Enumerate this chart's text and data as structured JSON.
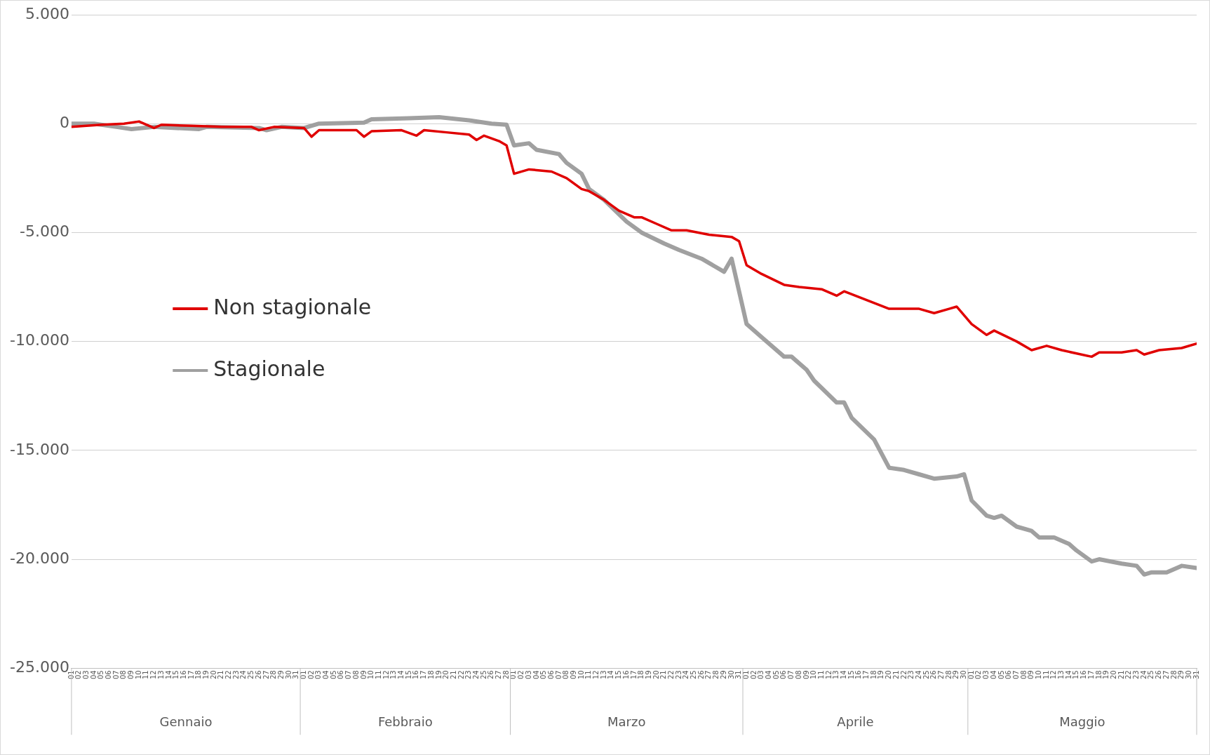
{
  "chart_data": {
    "type": "line",
    "xlim": [
      "--01-01",
      "--05-31"
    ],
    "annotations": [
      "Gennaio",
      "Febbraio",
      "Marzo",
      "Aprile",
      "Maggio"
    ],
    "xticks": [
      {
        "value": "--01-01",
        "label": "01"
      },
      {
        "value": "--01-02",
        "label": "02"
      },
      {
        "value": "--01-03",
        "label": "03"
      },
      {
        "value": "--01-04",
        "label": "04"
      },
      {
        "value": "--01-05",
        "label": "05"
      },
      {
        "value": "--01-06",
        "label": "06"
      },
      {
        "value": "--01-07",
        "label": "07"
      },
      {
        "value": "--01-08",
        "label": "08"
      },
      {
        "value": "--01-09",
        "label": "09"
      },
      {
        "value": "--01-10",
        "label": "10"
      },
      {
        "value": "--01-11",
        "label": "11"
      },
      {
        "value": "--01-12",
        "label": "12"
      },
      {
        "value": "--01-13",
        "label": "13"
      },
      {
        "value": "--01-14",
        "label": "14"
      },
      {
        "value": "--01-15",
        "label": "15"
      },
      {
        "value": "--01-16",
        "label": "16"
      },
      {
        "value": "--01-17",
        "label": "17"
      },
      {
        "value": "--01-18",
        "label": "18"
      },
      {
        "value": "--01-19",
        "label": "19"
      },
      {
        "value": "--01-20",
        "label": "20"
      },
      {
        "value": "--01-21",
        "label": "21"
      },
      {
        "value": "--01-22",
        "label": "22"
      },
      {
        "value": "--01-23",
        "label": "23"
      },
      {
        "value": "--01-24",
        "label": "24"
      },
      {
        "value": "--01-25",
        "label": "25"
      },
      {
        "value": "--01-26",
        "label": "26"
      },
      {
        "value": "--01-27",
        "label": "27"
      },
      {
        "value": "--01-28",
        "label": "28"
      },
      {
        "value": "--01-29",
        "label": "29"
      },
      {
        "value": "--01-30",
        "label": "30"
      },
      {
        "value": "--01-31",
        "label": "31"
      },
      {
        "value": "--02-01",
        "label": "01"
      },
      {
        "value": "--02-02",
        "label": "02"
      },
      {
        "value": "--02-03",
        "label": "03"
      },
      {
        "value": "--02-04",
        "label": "04"
      },
      {
        "value": "--02-05",
        "label": "05"
      },
      {
        "value": "--02-06",
        "label": "06"
      },
      {
        "value": "--02-07",
        "label": "07"
      },
      {
        "value": "--02-08",
        "label": "08"
      },
      {
        "value": "--02-09",
        "label": "09"
      },
      {
        "value": "--02-10",
        "label": "10"
      },
      {
        "value": "--02-11",
        "label": "11"
      },
      {
        "value": "--02-12",
        "label": "12"
      },
      {
        "value": "--02-13",
        "label": "13"
      },
      {
        "value": "--02-14",
        "label": "14"
      },
      {
        "value": "--02-15",
        "label": "15"
      },
      {
        "value": "--02-16",
        "label": "16"
      },
      {
        "value": "--02-17",
        "label": "17"
      },
      {
        "value": "--02-18",
        "label": "18"
      },
      {
        "value": "--02-19",
        "label": "19"
      },
      {
        "value": "--02-20",
        "label": "20"
      },
      {
        "value": "--02-21",
        "label": "21"
      },
      {
        "value": "--02-22",
        "label": "22"
      },
      {
        "value": "--02-23",
        "label": "23"
      },
      {
        "value": "--02-24",
        "label": "24"
      },
      {
        "value": "--02-25",
        "label": "25"
      },
      {
        "value": "--02-26",
        "label": "26"
      },
      {
        "value": "--02-27",
        "label": "27"
      },
      {
        "value": "--02-28",
        "label": "28"
      },
      {
        "value": "--03-01",
        "label": "01"
      },
      {
        "value": "--03-02",
        "label": "02"
      },
      {
        "value": "--03-03",
        "label": "03"
      },
      {
        "value": "--03-04",
        "label": "04"
      },
      {
        "value": "--03-05",
        "label": "05"
      },
      {
        "value": "--03-06",
        "label": "06"
      },
      {
        "value": "--03-07",
        "label": "07"
      },
      {
        "value": "--03-08",
        "label": "08"
      },
      {
        "value": "--03-09",
        "label": "09"
      },
      {
        "value": "--03-10",
        "label": "10"
      },
      {
        "value": "--03-11",
        "label": "11"
      },
      {
        "value": "--03-12",
        "label": "12"
      },
      {
        "value": "--03-13",
        "label": "13"
      },
      {
        "value": "--03-14",
        "label": "14"
      },
      {
        "value": "--03-15",
        "label": "15"
      },
      {
        "value": "--03-16",
        "label": "16"
      },
      {
        "value": "--03-17",
        "label": "17"
      },
      {
        "value": "--03-18",
        "label": "18"
      },
      {
        "value": "--03-19",
        "label": "19"
      },
      {
        "value": "--03-20",
        "label": "20"
      },
      {
        "value": "--03-21",
        "label": "21"
      },
      {
        "value": "--03-22",
        "label": "22"
      },
      {
        "value": "--03-23",
        "label": "23"
      },
      {
        "value": "--03-24",
        "label": "24"
      },
      {
        "value": "--03-25",
        "label": "25"
      },
      {
        "value": "--03-26",
        "label": "26"
      },
      {
        "value": "--03-27",
        "label": "27"
      },
      {
        "value": "--03-28",
        "label": "28"
      },
      {
        "value": "--03-29",
        "label": "29"
      },
      {
        "value": "--03-30",
        "label": "30"
      },
      {
        "value": "--03-31",
        "label": "31"
      },
      {
        "value": "--04-01",
        "label": "01"
      },
      {
        "value": "--04-02",
        "label": "02"
      },
      {
        "value": "--04-03",
        "label": "03"
      },
      {
        "value": "--04-04",
        "label": "04"
      },
      {
        "value": "--04-05",
        "label": "05"
      },
      {
        "value": "--04-06",
        "label": "06"
      },
      {
        "value": "--04-07",
        "label": "07"
      },
      {
        "value": "--04-08",
        "label": "08"
      },
      {
        "value": "--04-09",
        "label": "09"
      },
      {
        "value": "--04-10",
        "label": "10"
      },
      {
        "value": "--04-11",
        "label": "11"
      },
      {
        "value": "--04-12",
        "label": "12"
      },
      {
        "value": "--04-13",
        "label": "13"
      },
      {
        "value": "--04-14",
        "label": "14"
      },
      {
        "value": "--04-15",
        "label": "15"
      },
      {
        "value": "--04-16",
        "label": "16"
      },
      {
        "value": "--04-17",
        "label": "17"
      },
      {
        "value": "--04-18",
        "label": "18"
      },
      {
        "value": "--04-19",
        "label": "19"
      },
      {
        "value": "--04-20",
        "label": "20"
      },
      {
        "value": "--04-21",
        "label": "21"
      },
      {
        "value": "--04-22",
        "label": "22"
      },
      {
        "value": "--04-23",
        "label": "23"
      },
      {
        "value": "--04-24",
        "label": "24"
      },
      {
        "value": "--04-25",
        "label": "25"
      },
      {
        "value": "--04-26",
        "label": "26"
      },
      {
        "value": "--04-27",
        "label": "27"
      },
      {
        "value": "--04-28",
        "label": "28"
      },
      {
        "value": "--04-29",
        "label": "29"
      },
      {
        "value": "--04-30",
        "label": "30"
      },
      {
        "value": "--05-01",
        "label": "01"
      },
      {
        "value": "--05-02",
        "label": "02"
      },
      {
        "value": "--05-03",
        "label": "03"
      },
      {
        "value": "--05-04",
        "label": "04"
      },
      {
        "value": "--05-05",
        "label": "05"
      },
      {
        "value": "--05-06",
        "label": "06"
      },
      {
        "value": "--05-07",
        "label": "07"
      },
      {
        "value": "--05-08",
        "label": "08"
      },
      {
        "value": "--05-09",
        "label": "09"
      },
      {
        "value": "--05-10",
        "label": "10"
      },
      {
        "value": "--05-11",
        "label": "11"
      },
      {
        "value": "--05-12",
        "label": "12"
      },
      {
        "value": "--05-13",
        "label": "13"
      },
      {
        "value": "--05-14",
        "label": "14"
      },
      {
        "value": "--05-15",
        "label": "15"
      },
      {
        "value": "--05-16",
        "label": "16"
      },
      {
        "value": "--05-17",
        "label": "17"
      },
      {
        "value": "--05-18",
        "label": "18"
      },
      {
        "value": "--05-19",
        "label": "19"
      },
      {
        "value": "--05-20",
        "label": "20"
      },
      {
        "value": "--05-21",
        "label": "21"
      },
      {
        "value": "--05-22",
        "label": "22"
      },
      {
        "value": "--05-23",
        "label": "23"
      },
      {
        "value": "--05-24",
        "label": "24"
      },
      {
        "value": "--05-25",
        "label": "25"
      },
      {
        "value": "--05-26",
        "label": "26"
      },
      {
        "value": "--05-27",
        "label": "27"
      },
      {
        "value": "--05-28",
        "label": "28"
      },
      {
        "value": "--05-29",
        "label": "29"
      },
      {
        "value": "--05-30",
        "label": "30"
      },
      {
        "value": "--05-31",
        "label": "31"
      }
    ],
    "ylim": [
      -25000,
      5000
    ],
    "yticks": [
      {
        "value": 5000,
        "label": "5.000"
      },
      0,
      {
        "value": -5000,
        "label": "-5.000"
      },
      {
        "value": -10000,
        "label": "-10.000"
      },
      {
        "value": -15000,
        "label": "-15.000"
      },
      {
        "value": -20000,
        "label": "-20.000"
      },
      {
        "value": -25000,
        "label": "-25.000"
      }
    ],
    "grid": "y",
    "legend": "left",
    "line_style": "solid",
    "marker": "none",
    "series": [
      {
        "name": "Non stagionale",
        "color": "#e00000",
        "x": [
          "--01-01",
          "--01-05",
          "--01-08",
          "--01-10",
          "--01-12",
          "--01-13",
          "--01-17",
          "--01-21",
          "--01-25",
          "--01-26",
          "--01-28",
          "--02-01",
          "--02-02",
          "--02-03",
          "--02-08",
          "--02-09",
          "--02-10",
          "--02-14",
          "--02-16",
          "--02-17",
          "--02-20",
          "--02-23",
          "--02-24",
          "--02-25",
          "--02-27",
          "--02-28",
          "--03-01",
          "--03-03",
          "--03-06",
          "--03-08",
          "--03-10",
          "--03-11",
          "--03-13",
          "--03-15",
          "--03-17",
          "--03-18",
          "--03-20",
          "--03-22",
          "--03-24",
          "--03-27",
          "--03-30",
          "--03-31",
          "--04-01",
          "--04-03",
          "--04-06",
          "--04-08",
          "--04-11",
          "--04-13",
          "--04-14",
          "--04-17",
          "--04-20",
          "--04-22",
          "--04-24",
          "--04-26",
          "--04-28",
          "--04-29",
          "--05-01",
          "--05-03",
          "--05-04",
          "--05-07",
          "--05-09",
          "--05-11",
          "--05-13",
          "--05-17",
          "--05-18",
          "--05-21",
          "--05-23",
          "--05-24",
          "--05-26",
          "--05-29",
          "--05-31"
        ],
        "values": [
          -150,
          -50,
          0,
          100,
          -200,
          -50,
          -100,
          -150,
          -150,
          -300,
          -150,
          -200,
          -600,
          -300,
          -300,
          -600,
          -350,
          -300,
          -550,
          -300,
          -400,
          -500,
          -750,
          -550,
          -800,
          -1000,
          -2300,
          -2100,
          -2200,
          -2500,
          -3000,
          -3100,
          -3500,
          -4000,
          -4300,
          -4300,
          -4600,
          -4900,
          -4900,
          -5100,
          -5200,
          -5400,
          -6500,
          -6900,
          -7400,
          -7500,
          -7600,
          -7900,
          -7700,
          -8100,
          -8500,
          -8500,
          -8500,
          -8700,
          -8500,
          -8400,
          -9200,
          -9700,
          -9500,
          -10000,
          -10400,
          -10200,
          -10400,
          -10700,
          -10500,
          -10500,
          -10400,
          -10600,
          -10400,
          -10300,
          -10100
        ]
      },
      {
        "name": "Stagionale",
        "color": "#a0a0a0",
        "x": [
          "--01-01",
          "--01-04",
          "--01-07",
          "--01-09",
          "--01-12",
          "--01-15",
          "--01-18",
          "--01-19",
          "--01-26",
          "--01-27",
          "--01-29",
          "--02-01",
          "--02-03",
          "--02-09",
          "--02-10",
          "--02-15",
          "--02-19",
          "--02-23",
          "--02-26",
          "--02-28",
          "--03-01",
          "--03-03",
          "--03-04",
          "--03-07",
          "--03-08",
          "--03-10",
          "--03-11",
          "--03-13",
          "--03-16",
          "--03-18",
          "--03-21",
          "--03-23",
          "--03-26",
          "--03-29",
          "--03-30",
          "--04-01",
          "--04-03",
          "--04-06",
          "--04-07",
          "--04-09",
          "--04-10",
          "--04-13",
          "--04-14",
          "--04-15",
          "--04-18",
          "--04-20",
          "--04-22",
          "--04-24",
          "--04-26",
          "--04-29",
          "--04-30",
          "--05-01",
          "--05-03",
          "--05-04",
          "--05-05",
          "--05-07",
          "--05-09",
          "--05-10",
          "--05-12",
          "--05-14",
          "--05-15",
          "--05-17",
          "--05-18",
          "--05-21",
          "--05-23",
          "--05-24",
          "--05-25",
          "--05-27",
          "--05-29",
          "--05-31"
        ],
        "values": [
          0,
          0,
          -150,
          -250,
          -150,
          -200,
          -250,
          -150,
          -200,
          -300,
          -150,
          -200,
          0,
          50,
          200,
          250,
          300,
          150,
          0,
          -50,
          -1000,
          -900,
          -1200,
          -1400,
          -1800,
          -2300,
          -3000,
          -3500,
          -4500,
          -5000,
          -5500,
          -5800,
          -6200,
          -6800,
          -6200,
          -9200,
          -9800,
          -10700,
          -10700,
          -11300,
          -11800,
          -12800,
          -12800,
          -13500,
          -14500,
          -15800,
          -15900,
          -16100,
          -16300,
          -16200,
          -16100,
          -17300,
          -18000,
          -18100,
          -18000,
          -18500,
          -18700,
          -19000,
          -19000,
          -19300,
          -19600,
          -20100,
          -20000,
          -20200,
          -20300,
          -20700,
          -20600,
          -20600,
          -20300,
          -20400
        ]
      }
    ]
  }
}
